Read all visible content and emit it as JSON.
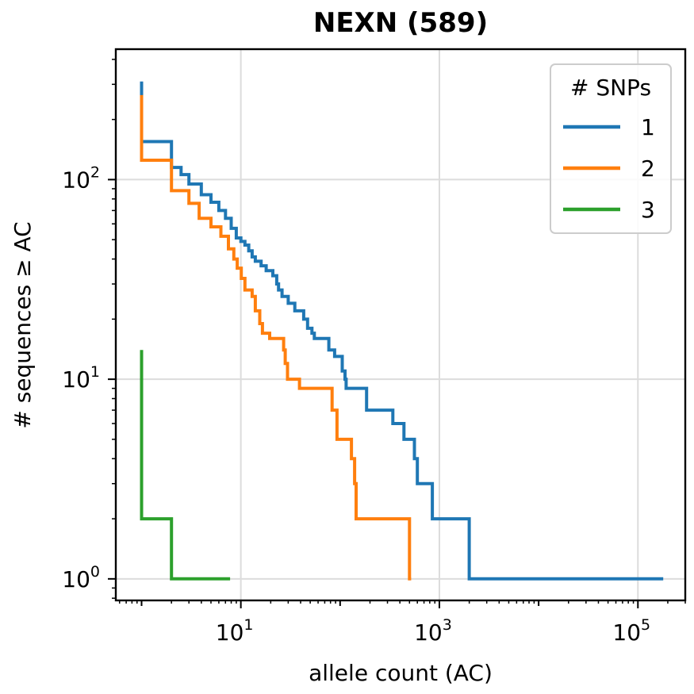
{
  "chart_data": {
    "type": "line",
    "title": "NEXN (589)",
    "xlabel": "allele count (AC)",
    "ylabel": "# sequences ≥ AC",
    "xscale": "log",
    "yscale": "log",
    "xlim": [
      0.55,
      300000
    ],
    "ylim": [
      0.78,
      450
    ],
    "grid": true,
    "x_ticks": [
      {
        "base": "10",
        "exp": "1",
        "value": 10
      },
      {
        "base": "10",
        "exp": "3",
        "value": 1000
      },
      {
        "base": "10",
        "exp": "5",
        "value": 100000
      }
    ],
    "y_ticks": [
      {
        "base": "10",
        "exp": "0",
        "value": 1
      },
      {
        "base": "10",
        "exp": "1",
        "value": 10
      },
      {
        "base": "10",
        "exp": "2",
        "value": 100
      }
    ],
    "legend": {
      "title": "# SNPs",
      "position": "top-right"
    },
    "series": [
      {
        "name": "1",
        "color": "#1f77b4",
        "points": [
          [
            1,
            310
          ],
          [
            1,
            155
          ],
          [
            2,
            155
          ],
          [
            2,
            115
          ],
          [
            2.5,
            115
          ],
          [
            2.5,
            106
          ],
          [
            3,
            106
          ],
          [
            3,
            95
          ],
          [
            4,
            95
          ],
          [
            4,
            84
          ],
          [
            5,
            84
          ],
          [
            5,
            77
          ],
          [
            6,
            77
          ],
          [
            6,
            70
          ],
          [
            7,
            70
          ],
          [
            7,
            64
          ],
          [
            8,
            64
          ],
          [
            8,
            57
          ],
          [
            9,
            57
          ],
          [
            9,
            51
          ],
          [
            10,
            51
          ],
          [
            10,
            49
          ],
          [
            11,
            49
          ],
          [
            11,
            47
          ],
          [
            12,
            47
          ],
          [
            12,
            44
          ],
          [
            13,
            44
          ],
          [
            13,
            41
          ],
          [
            14,
            41
          ],
          [
            14,
            39
          ],
          [
            16,
            39
          ],
          [
            16,
            37
          ],
          [
            18,
            37
          ],
          [
            18,
            35
          ],
          [
            21,
            35
          ],
          [
            21,
            33
          ],
          [
            23,
            33
          ],
          [
            23,
            30
          ],
          [
            24,
            30
          ],
          [
            24,
            28
          ],
          [
            26,
            28
          ],
          [
            26,
            26
          ],
          [
            30,
            26
          ],
          [
            30,
            24
          ],
          [
            35,
            24
          ],
          [
            35,
            22
          ],
          [
            43,
            22
          ],
          [
            43,
            20
          ],
          [
            47,
            20
          ],
          [
            47,
            18
          ],
          [
            52,
            18
          ],
          [
            52,
            17
          ],
          [
            55,
            17
          ],
          [
            55,
            16
          ],
          [
            77,
            16
          ],
          [
            77,
            14
          ],
          [
            88,
            14
          ],
          [
            88,
            13
          ],
          [
            105,
            13
          ],
          [
            105,
            11
          ],
          [
            112,
            11
          ],
          [
            112,
            10
          ],
          [
            115,
            10
          ],
          [
            115,
            9
          ],
          [
            185,
            9
          ],
          [
            185,
            7
          ],
          [
            340,
            7
          ],
          [
            340,
            6
          ],
          [
            440,
            6
          ],
          [
            440,
            5
          ],
          [
            560,
            5
          ],
          [
            560,
            4
          ],
          [
            600,
            4
          ],
          [
            600,
            3
          ],
          [
            850,
            3
          ],
          [
            850,
            2
          ],
          [
            2000,
            2
          ],
          [
            2000,
            1
          ],
          [
            180000,
            1
          ]
        ]
      },
      {
        "name": "2",
        "color": "#ff7f0e",
        "points": [
          [
            1,
            265
          ],
          [
            1,
            125
          ],
          [
            2,
            125
          ],
          [
            2,
            88
          ],
          [
            3,
            88
          ],
          [
            3,
            76
          ],
          [
            3.8,
            76
          ],
          [
            3.8,
            64
          ],
          [
            5,
            64
          ],
          [
            5,
            58
          ],
          [
            6.3,
            58
          ],
          [
            6.3,
            52
          ],
          [
            7.5,
            52
          ],
          [
            7.5,
            45
          ],
          [
            8.5,
            45
          ],
          [
            8.5,
            40
          ],
          [
            9.2,
            40
          ],
          [
            9.2,
            36
          ],
          [
            10.1,
            36
          ],
          [
            10.1,
            32
          ],
          [
            11,
            32
          ],
          [
            11,
            28
          ],
          [
            13,
            28
          ],
          [
            13,
            26
          ],
          [
            14,
            26
          ],
          [
            14,
            22
          ],
          [
            15.5,
            22
          ],
          [
            15.5,
            19
          ],
          [
            16.5,
            19
          ],
          [
            16.5,
            17
          ],
          [
            19.5,
            17
          ],
          [
            19.5,
            16
          ],
          [
            27,
            16
          ],
          [
            27,
            14
          ],
          [
            28,
            14
          ],
          [
            28,
            12
          ],
          [
            29.5,
            12
          ],
          [
            29.5,
            10
          ],
          [
            39,
            10
          ],
          [
            39,
            9
          ],
          [
            83,
            9
          ],
          [
            83,
            7
          ],
          [
            93,
            7
          ],
          [
            93,
            5
          ],
          [
            130,
            5
          ],
          [
            130,
            4
          ],
          [
            140,
            4
          ],
          [
            140,
            3
          ],
          [
            145,
            3
          ],
          [
            145,
            2
          ],
          [
            500,
            2
          ],
          [
            500,
            1
          ],
          [
            520,
            1
          ]
        ]
      },
      {
        "name": "3",
        "color": "#2ca02c",
        "points": [
          [
            1,
            14
          ],
          [
            1,
            2
          ],
          [
            2,
            2
          ],
          [
            2,
            1
          ],
          [
            7.8,
            1
          ]
        ]
      }
    ]
  }
}
